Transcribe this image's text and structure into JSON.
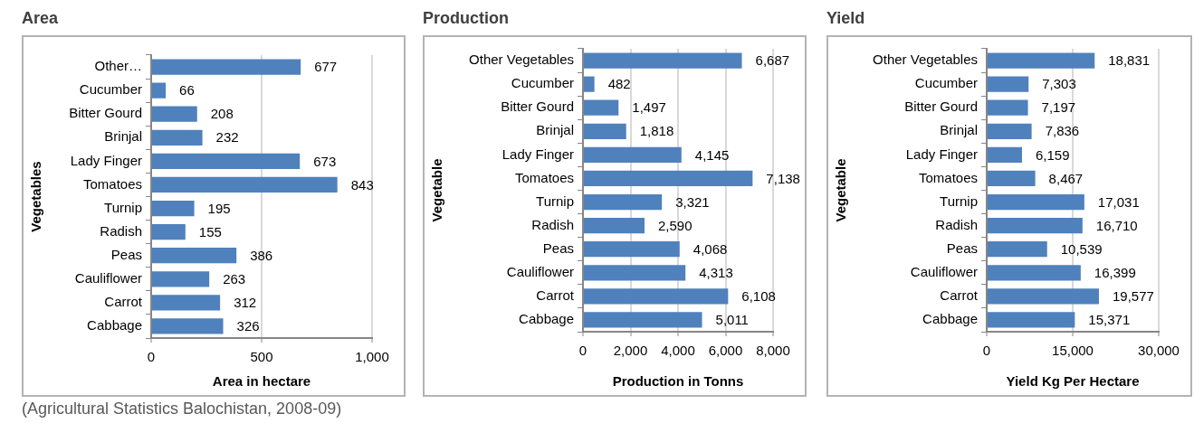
{
  "chart_data": [
    {
      "type": "bar",
      "orientation": "horizontal",
      "title": "Area",
      "xlabel": "Area in hectare",
      "ylabel": "Vegetables",
      "categories": [
        "Other…",
        "Cucumber",
        "Bitter Gourd",
        "Brinjal",
        "Lady Finger",
        "Tomatoes",
        "Turnip",
        "Radish",
        "Peas",
        "Cauliflower",
        "Carrot",
        "Cabbage"
      ],
      "values": [
        677,
        66,
        208,
        232,
        673,
        843,
        195,
        155,
        386,
        263,
        312,
        326
      ],
      "color": "#4f81bd",
      "data_labels": true,
      "xlim": [
        0,
        1000
      ],
      "xticks": [
        {
          "value": 0,
          "label": "0"
        },
        500,
        {
          "value": 1000,
          "label": "1,000"
        }
      ],
      "grid": "x",
      "annotations": [
        "(Agricultural Statistics Balochistan, 2008-09)"
      ]
    },
    {
      "type": "bar",
      "orientation": "horizontal",
      "title": "Production",
      "xlabel": "Production in Tonns",
      "ylabel": "Vegetable",
      "categories": [
        "Other Vegetables",
        "Cucumber",
        "Bitter Gourd",
        "Brinjal",
        "Lady Finger",
        "Tomatoes",
        "Turnip",
        "Radish",
        "Peas",
        "Cauliflower",
        "Carrot",
        "Cabbage"
      ],
      "values": [
        6687,
        482,
        1497,
        1818,
        4145,
        7138,
        3321,
        2590,
        4068,
        4313,
        6108,
        5011
      ],
      "value_labels": [
        "6,687",
        "482",
        "1,497",
        "1,818",
        "4,145",
        "7,138",
        "3,321",
        "2,590",
        "4,068",
        "4,313",
        "6,108",
        "5,011"
      ],
      "color": "#4f81bd",
      "xlim": [
        0,
        8000
      ],
      "xticks": [
        {
          "value": 0,
          "label": "0"
        },
        {
          "value": 2000,
          "label": "2,000"
        },
        {
          "value": 4000,
          "label": "4,000"
        },
        {
          "value": 6000,
          "label": "6,000"
        },
        {
          "value": 8000,
          "label": "8,000"
        }
      ],
      "grid": "x"
    },
    {
      "type": "bar",
      "orientation": "horizontal",
      "title": "Yield",
      "xlabel": "Yield Kg Per Hectare",
      "ylabel": "Vegetable",
      "categories": [
        "Other Vegetables",
        "Cucumber",
        "Bitter Gourd",
        "Brinjal",
        "Lady Finger",
        "Tomatoes",
        "Turnip",
        "Radish",
        "Peas",
        "Cauliflower",
        "Carrot",
        "Cabbage"
      ],
      "values": [
        18831,
        7303,
        7197,
        7836,
        6159,
        8467,
        17031,
        16710,
        10539,
        16399,
        19577,
        15371
      ],
      "value_labels": [
        "18,831",
        "7,303",
        "7,197",
        "7,836",
        "6,159",
        "8,467",
        "17,031",
        "16,710",
        "10,539",
        "16,399",
        "19,577",
        "15,371"
      ],
      "color": "#4f81bd",
      "xlim": [
        0,
        30000
      ],
      "xticks": [
        {
          "value": 0,
          "label": "0"
        },
        {
          "value": 15000,
          "label": "15,000"
        },
        {
          "value": 30000,
          "label": "30,000"
        }
      ],
      "grid": "x"
    }
  ]
}
